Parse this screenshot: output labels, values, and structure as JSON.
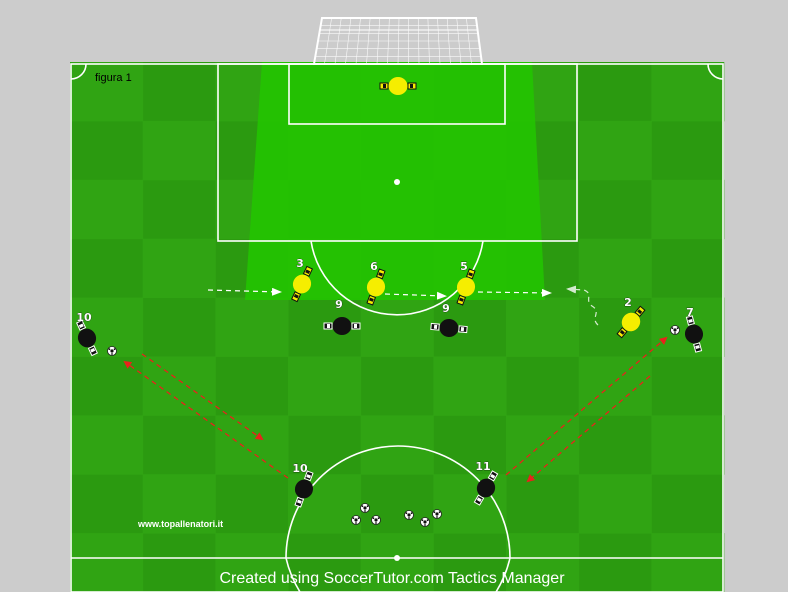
{
  "figure_label": "figura 1",
  "website": "www.topallenatori.it",
  "credit": "Created using SoccerTutor.com Tactics Manager",
  "colors": {
    "pitch_dark": "#2b9a10",
    "pitch_light": "#35ad16",
    "highlight_zone": "#22c700",
    "yellow_team": "#f5ee00",
    "black_team": "#111111",
    "arrow_red": "#e8231b",
    "arrow_white": "#ffffff"
  },
  "players": {
    "goalkeeper": {
      "number": ""
    },
    "yellow": [
      {
        "number": "3"
      },
      {
        "number": "6"
      },
      {
        "number": "5"
      },
      {
        "number": "2"
      }
    ],
    "black": [
      {
        "number": "10"
      },
      {
        "number": "9"
      },
      {
        "number": "9"
      },
      {
        "number": "7"
      },
      {
        "number": "10"
      },
      {
        "number": "11"
      }
    ]
  },
  "icons": [
    "ball-icon",
    "goal-icon",
    "arrow-icon"
  ]
}
